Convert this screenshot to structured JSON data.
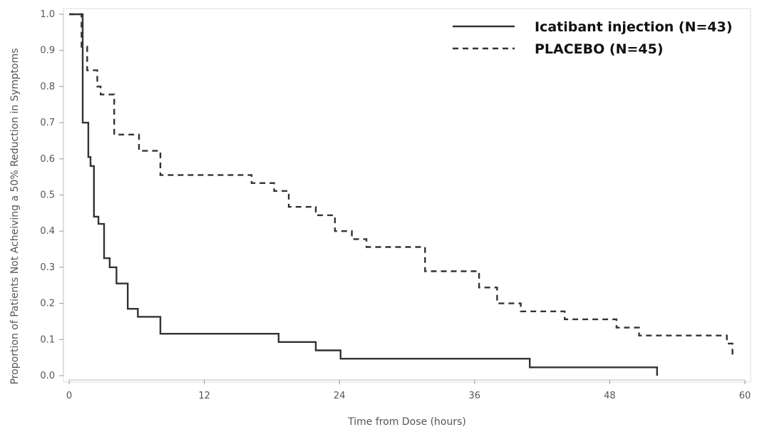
{
  "chart_data": {
    "type": "line",
    "step": true,
    "xlabel": "Time from Dose (hours)",
    "ylabel": "Proportion of Patients Not Acheiving a 50% Reduction in Symptoms",
    "xlim": [
      0,
      60
    ],
    "ylim": [
      0,
      1
    ],
    "xticks": [
      0,
      12,
      24,
      36,
      48,
      60
    ],
    "yticks": [
      0.0,
      0.1,
      0.2,
      0.3,
      0.4,
      0.5,
      0.6,
      0.7,
      0.8,
      0.9,
      1.0
    ],
    "xtick_labels": [
      "0",
      "12",
      "24",
      "36",
      "48",
      "60"
    ],
    "ytick_labels": [
      "0.0",
      "0.1",
      "0.2",
      "0.3",
      "0.4",
      "0.5",
      "0.6",
      "0.7",
      "0.8",
      "0.9",
      "1.0"
    ],
    "grid": false,
    "legend_position": "top-right",
    "series": [
      {
        "name": "Icatibant injection (N=43)",
        "style": "solid",
        "color": "#333333",
        "points": [
          [
            0,
            1.0
          ],
          [
            1.2,
            1.0
          ],
          [
            1.2,
            0.7
          ],
          [
            1.7,
            0.7
          ],
          [
            1.7,
            0.605
          ],
          [
            1.9,
            0.605
          ],
          [
            1.9,
            0.58
          ],
          [
            2.2,
            0.58
          ],
          [
            2.2,
            0.44
          ],
          [
            2.6,
            0.44
          ],
          [
            2.6,
            0.42
          ],
          [
            3.1,
            0.42
          ],
          [
            3.1,
            0.325
          ],
          [
            3.6,
            0.325
          ],
          [
            3.6,
            0.3
          ],
          [
            4.2,
            0.3
          ],
          [
            4.2,
            0.255
          ],
          [
            5.2,
            0.255
          ],
          [
            5.2,
            0.185
          ],
          [
            6.1,
            0.185
          ],
          [
            6.1,
            0.163
          ],
          [
            8.1,
            0.163
          ],
          [
            8.1,
            0.116
          ],
          [
            18.6,
            0.116
          ],
          [
            18.6,
            0.093
          ],
          [
            21.9,
            0.093
          ],
          [
            21.9,
            0.07
          ],
          [
            24.1,
            0.07
          ],
          [
            24.1,
            0.047
          ],
          [
            40.9,
            0.047
          ],
          [
            40.9,
            0.023
          ],
          [
            52.2,
            0.023
          ],
          [
            52.2,
            0.0
          ]
        ]
      },
      {
        "name": "PLACEBO (N=45)",
        "style": "dashed",
        "color": "#333333",
        "points": [
          [
            0,
            1.0
          ],
          [
            1.1,
            1.0
          ],
          [
            1.1,
            0.91
          ],
          [
            1.6,
            0.91
          ],
          [
            1.6,
            0.845
          ],
          [
            2.5,
            0.845
          ],
          [
            2.5,
            0.8
          ],
          [
            2.8,
            0.8
          ],
          [
            2.8,
            0.778
          ],
          [
            4.0,
            0.778
          ],
          [
            4.0,
            0.667
          ],
          [
            6.2,
            0.667
          ],
          [
            6.2,
            0.622
          ],
          [
            8.1,
            0.622
          ],
          [
            8.1,
            0.555
          ],
          [
            16.2,
            0.555
          ],
          [
            16.2,
            0.533
          ],
          [
            18.2,
            0.533
          ],
          [
            18.2,
            0.511
          ],
          [
            19.5,
            0.511
          ],
          [
            19.5,
            0.467
          ],
          [
            21.9,
            0.467
          ],
          [
            21.9,
            0.444
          ],
          [
            23.6,
            0.444
          ],
          [
            23.6,
            0.4
          ],
          [
            25.1,
            0.4
          ],
          [
            25.1,
            0.378
          ],
          [
            26.4,
            0.378
          ],
          [
            26.4,
            0.356
          ],
          [
            31.6,
            0.356
          ],
          [
            31.6,
            0.289
          ],
          [
            36.4,
            0.289
          ],
          [
            36.4,
            0.244
          ],
          [
            38.0,
            0.244
          ],
          [
            38.0,
            0.2
          ],
          [
            40.1,
            0.2
          ],
          [
            40.1,
            0.178
          ],
          [
            44.0,
            0.178
          ],
          [
            44.0,
            0.156
          ],
          [
            48.6,
            0.156
          ],
          [
            48.6,
            0.133
          ],
          [
            50.6,
            0.133
          ],
          [
            50.6,
            0.111
          ],
          [
            58.4,
            0.111
          ],
          [
            58.4,
            0.089
          ],
          [
            58.9,
            0.089
          ],
          [
            58.9,
            0.056
          ]
        ]
      }
    ]
  }
}
